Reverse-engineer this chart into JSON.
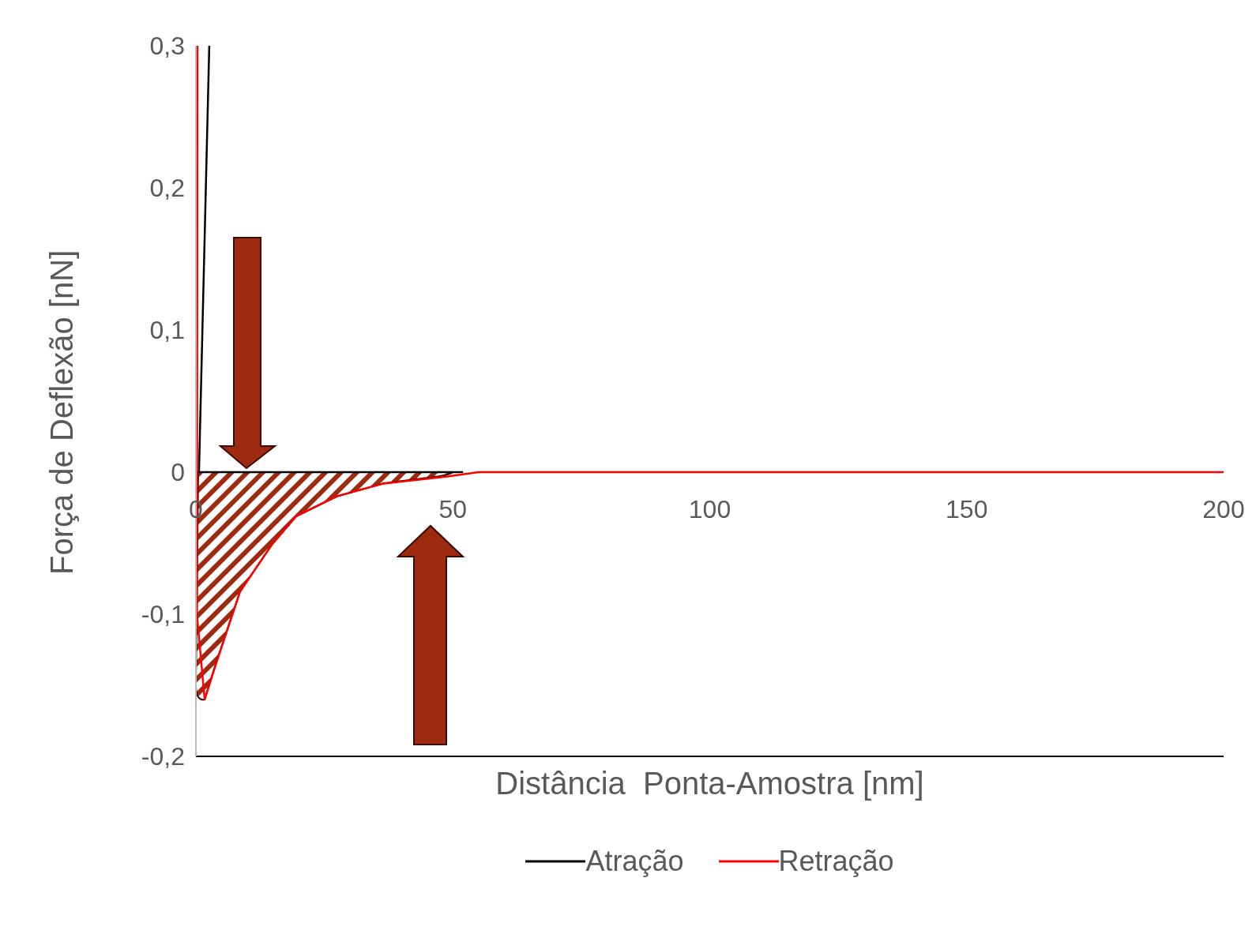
{
  "chart_data": {
    "type": "line",
    "xlabel": "Distância  Ponta-Amostra [nm]",
    "ylabel": "Força de Deflexão [nN]",
    "xlim": [
      0,
      200
    ],
    "xticks": [
      0,
      50,
      100,
      150,
      200
    ],
    "ylim": [
      -0.2,
      0.3
    ],
    "yticks": [
      {
        "value": -0.2,
        "label": "-0,2"
      },
      {
        "value": -0.1,
        "label": "-0,1"
      },
      {
        "value": 0,
        "label": "0"
      },
      {
        "value": 0.1,
        "label": "0,1"
      },
      {
        "value": 0.2,
        "label": "0,2"
      },
      {
        "value": 0.3,
        "label": "0,3"
      }
    ],
    "series": [
      {
        "name": "Atração",
        "color": "#000000",
        "x": [
          2.6,
          0.6,
          30,
          52
        ],
        "values": [
          0.3,
          0,
          0,
          0
        ]
      },
      {
        "name": "Retração",
        "color": "#ff0000",
        "x": [
          0.3,
          0.2,
          1.7,
          3.9,
          8.6,
          14.8,
          19.5,
          27.3,
          36.6,
          49,
          55,
          100,
          150,
          200
        ],
        "values": [
          0.3,
          -0.1,
          -0.16,
          -0.135,
          -0.084,
          -0.051,
          -0.031,
          -0.017,
          -0.008,
          -0.003,
          0,
          0,
          0,
          0
        ]
      }
    ],
    "legend": "bottom",
    "grid": false,
    "marker": "none",
    "line_style": "solid"
  }
}
